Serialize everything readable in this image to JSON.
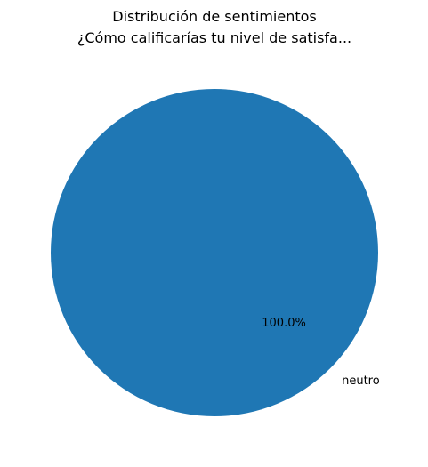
{
  "chart_data": {
    "type": "pie",
    "title": "Distribución de sentimientos",
    "subtitle": "¿Cómo calificarías tu nivel de satisfa...",
    "slices": [
      {
        "label": "neutro",
        "value": 100.0,
        "percent_label": "100.0%",
        "color": "#1f77b4"
      }
    ],
    "legend": "none"
  }
}
